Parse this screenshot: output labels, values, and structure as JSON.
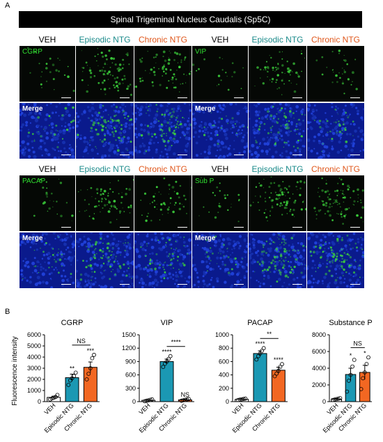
{
  "panel_a": {
    "letter": "A",
    "banner": "Spinal Trigeminal Nucleus Caudalis (Sp5C)",
    "headers": [
      "VEH",
      "Episodic NTG",
      "Chronic NTG"
    ],
    "blocks": [
      {
        "marker": "CGRP",
        "merge": "Merge"
      },
      {
        "marker": "VIP",
        "merge": "Merge"
      },
      {
        "marker": "PACAP",
        "merge": "Merge"
      },
      {
        "marker": "Sub P",
        "merge": "Merge"
      }
    ]
  },
  "panel_b": {
    "letter": "B",
    "ylabel": "Fluorescence intensity"
  },
  "chart_data": [
    {
      "type": "bar",
      "title": "CGRP",
      "ylabel": "Fluorescence intensity",
      "categories": [
        "VEH",
        "Episodic NTG",
        "Chronic NTG"
      ],
      "values": [
        380,
        2150,
        3080
      ],
      "errors": [
        110,
        320,
        480
      ],
      "points": [
        [
          200,
          280,
          350,
          420,
          600
        ],
        [
          1500,
          1900,
          2100,
          2300,
          2600
        ],
        [
          2000,
          2500,
          3000,
          3900,
          4200
        ]
      ],
      "colors": [
        "#ffffff",
        "#1b98b3",
        "#f26722"
      ],
      "ylim": [
        0,
        6000
      ],
      "yticks": [
        0,
        1000,
        2000,
        3000,
        4000,
        5000,
        6000
      ],
      "significance": [
        "",
        "**",
        "***"
      ],
      "comparison": {
        "from": 1,
        "to": 2,
        "label": "NS"
      }
    },
    {
      "type": "bar",
      "title": "VIP",
      "categories": [
        "VEH",
        "Episodic NTG",
        "Chronic NTG"
      ],
      "values": [
        30,
        900,
        40
      ],
      "errors": [
        8,
        55,
        10
      ],
      "points": [
        [
          10,
          20,
          30,
          40,
          50
        ],
        [
          780,
          850,
          900,
          960,
          1020
        ],
        [
          20,
          30,
          40,
          50,
          60
        ]
      ],
      "colors": [
        "#ffffff",
        "#1b98b3",
        "#f26722"
      ],
      "ylim": [
        0,
        1500
      ],
      "yticks": [
        0,
        300,
        600,
        900,
        1200,
        1500
      ],
      "significance": [
        "",
        "****",
        "NS"
      ],
      "comparison": {
        "from": 1,
        "to": 2,
        "label": "****"
      }
    },
    {
      "type": "bar",
      "title": "PACAP",
      "categories": [
        "VEH",
        "Episodic NTG",
        "Chronic NTG"
      ],
      "values": [
        35,
        720,
        470
      ],
      "errors": [
        5,
        40,
        45
      ],
      "points": [
        [
          25,
          30,
          35,
          40,
          45
        ],
        [
          630,
          680,
          720,
          760,
          800
        ],
        [
          380,
          420,
          460,
          520,
          560
        ]
      ],
      "colors": [
        "#ffffff",
        "#1b98b3",
        "#f26722"
      ],
      "ylim": [
        0,
        1000
      ],
      "yticks": [
        0,
        200,
        400,
        600,
        800,
        1000
      ],
      "significance": [
        "",
        "****",
        "****"
      ],
      "comparison": {
        "from": 1,
        "to": 2,
        "label": "**"
      }
    },
    {
      "type": "bar",
      "title": "Substance P",
      "categories": [
        "VEH",
        "Episodic NTG",
        "Chronic NTG"
      ],
      "values": [
        300,
        3250,
        3500
      ],
      "errors": [
        70,
        750,
        850
      ],
      "points": [
        [
          200,
          250,
          300,
          350,
          420
        ],
        [
          1200,
          2500,
          3200,
          4200,
          5000
        ],
        [
          1500,
          2800,
          3500,
          4500,
          5300
        ]
      ],
      "colors": [
        "#ffffff",
        "#1b98b3",
        "#f26722"
      ],
      "ylim": [
        0,
        8000
      ],
      "yticks": [
        0,
        2000,
        4000,
        6000,
        8000
      ],
      "significance": [
        "",
        "*",
        "*"
      ],
      "comparison": {
        "from": 1,
        "to": 2,
        "label": "NS"
      }
    }
  ]
}
